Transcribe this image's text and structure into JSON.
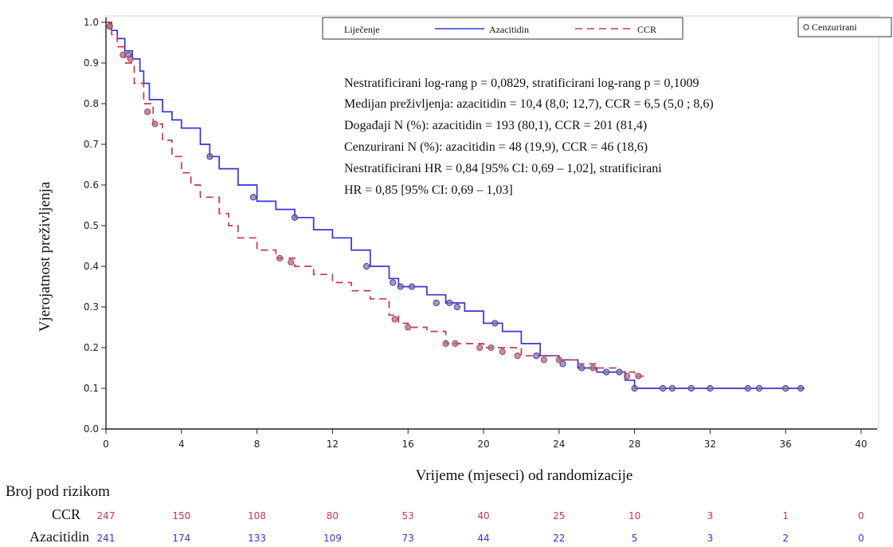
{
  "colors": {
    "azacitidine": "#3535d6",
    "ccr": "#c43a4a",
    "censor_fill": "#8a7e86",
    "axis": "#222222"
  },
  "chart_data": {
    "type": "line",
    "xlabel": "Vrijeme (mjeseci) od randomizacije",
    "ylabel": "Vjerojatnost preživljenja",
    "xlim": [
      0,
      40
    ],
    "ylim": [
      0,
      1
    ],
    "x_ticks": [
      "0",
      "4",
      "8",
      "12",
      "16",
      "20",
      "24",
      "28",
      "32",
      "36",
      "40"
    ],
    "y_ticks": [
      "0.0",
      "0.1",
      "0.2",
      "0.3",
      "0.4",
      "0.5",
      "0.6",
      "0.7",
      "0.8",
      "0.9",
      "1.0"
    ],
    "legend": {
      "title": "Liječenje",
      "censor_label": "Cenzurirani",
      "placement": "top"
    },
    "series": [
      {
        "name": "Azacitidin",
        "style": "solid",
        "x": [
          0,
          0.3,
          0.6,
          1.0,
          1.4,
          1.8,
          2.0,
          2.3,
          3.0,
          3.5,
          4.0,
          5.0,
          5.5,
          6.0,
          7.0,
          8.0,
          9.0,
          10.0,
          11.0,
          12.0,
          13.0,
          14.0,
          15.0,
          15.5,
          16.0,
          17.0,
          18.0,
          19.0,
          20.0,
          21.0,
          22.0,
          23.0,
          24.0,
          25.0,
          26.0,
          27.0,
          27.5,
          28.0,
          29.0,
          30.0,
          32.0,
          34.0,
          36.0,
          37.0
        ],
        "y": [
          1.0,
          0.98,
          0.96,
          0.93,
          0.91,
          0.88,
          0.85,
          0.81,
          0.78,
          0.76,
          0.74,
          0.7,
          0.67,
          0.64,
          0.6,
          0.56,
          0.54,
          0.52,
          0.49,
          0.47,
          0.44,
          0.4,
          0.37,
          0.35,
          0.35,
          0.33,
          0.31,
          0.29,
          0.26,
          0.24,
          0.21,
          0.18,
          0.17,
          0.15,
          0.14,
          0.14,
          0.12,
          0.1,
          0.1,
          0.1,
          0.1,
          0.1,
          0.1,
          0.1
        ],
        "censored": [
          [
            0.2,
            0.99
          ],
          [
            1.2,
            0.92
          ],
          [
            5.5,
            0.67
          ],
          [
            7.8,
            0.57
          ],
          [
            10.0,
            0.52
          ],
          [
            13.8,
            0.4
          ],
          [
            15.2,
            0.36
          ],
          [
            15.6,
            0.35
          ],
          [
            16.2,
            0.35
          ],
          [
            17.5,
            0.31
          ],
          [
            18.2,
            0.31
          ],
          [
            18.6,
            0.3
          ],
          [
            20.6,
            0.26
          ],
          [
            22.8,
            0.18
          ],
          [
            24.2,
            0.16
          ],
          [
            25.2,
            0.15
          ],
          [
            26.5,
            0.14
          ],
          [
            27.2,
            0.14
          ],
          [
            28.0,
            0.1
          ],
          [
            29.5,
            0.1
          ],
          [
            30.0,
            0.1
          ],
          [
            31.0,
            0.1
          ],
          [
            32.0,
            0.1
          ],
          [
            34.0,
            0.1
          ],
          [
            34.6,
            0.1
          ],
          [
            36.0,
            0.1
          ],
          [
            36.8,
            0.1
          ]
        ]
      },
      {
        "name": "CCR",
        "style": "dashed",
        "x": [
          0,
          0.3,
          0.6,
          1.0,
          1.5,
          2.0,
          2.5,
          3.0,
          3.5,
          4.0,
          4.5,
          5.0,
          6.0,
          6.5,
          7.0,
          8.0,
          9.0,
          10.0,
          11.0,
          12.0,
          13.0,
          14.0,
          15.0,
          15.5,
          16.0,
          17.0,
          18.0,
          19.0,
          20.0,
          21.0,
          22.0,
          23.0,
          24.0,
          25.0,
          26.0,
          27.0,
          28.0,
          28.5
        ],
        "y": [
          1.0,
          0.97,
          0.94,
          0.9,
          0.85,
          0.8,
          0.75,
          0.71,
          0.67,
          0.63,
          0.6,
          0.57,
          0.53,
          0.5,
          0.47,
          0.44,
          0.42,
          0.4,
          0.38,
          0.36,
          0.34,
          0.32,
          0.28,
          0.26,
          0.25,
          0.24,
          0.21,
          0.21,
          0.2,
          0.2,
          0.18,
          0.18,
          0.17,
          0.16,
          0.15,
          0.14,
          0.13,
          0.12
        ],
        "censored": [
          [
            0.2,
            0.99
          ],
          [
            0.9,
            0.92
          ],
          [
            1.3,
            0.91
          ],
          [
            2.2,
            0.78
          ],
          [
            2.6,
            0.75
          ],
          [
            9.2,
            0.42
          ],
          [
            9.8,
            0.41
          ],
          [
            15.3,
            0.27
          ],
          [
            16.0,
            0.25
          ],
          [
            18.0,
            0.21
          ],
          [
            18.5,
            0.21
          ],
          [
            19.8,
            0.2
          ],
          [
            20.4,
            0.2
          ],
          [
            21.0,
            0.19
          ],
          [
            21.8,
            0.18
          ],
          [
            23.2,
            0.17
          ],
          [
            24.0,
            0.17
          ],
          [
            25.8,
            0.15
          ],
          [
            27.6,
            0.13
          ],
          [
            28.2,
            0.13
          ]
        ]
      }
    ],
    "annotation_lines": [
      "Nestratificirani log-rang p = 0,0829, stratificirani log-rang p = 0,1009",
      "Medijan preživljenja: azacitidin = 10,4 (8,0; 12,7), CCR = 6,5 (5,0 ; 8,6)",
      "Događaji N (%): azacitidin = 193 (80,1), CCR = 201 (81,4)",
      "Cenzurirani N (%): azacitidin = 48 (19,9), CCR = 46 (18,6)",
      "Nestratificirani HR = 0,84 [95% CI: 0,69 – 1,02], stratificirani",
      "HR = 0,85 [95% CI: 0,69 – 1,03]"
    ],
    "risk_table": {
      "title": "Broj pod rizikom",
      "rows": [
        {
          "label": "CCR",
          "values": [
            "247",
            "150",
            "108",
            "80",
            "53",
            "40",
            "25",
            "10",
            "3",
            "1",
            "0"
          ]
        },
        {
          "label": "Azacitidin",
          "values": [
            "241",
            "174",
            "133",
            "109",
            "73",
            "44",
            "22",
            "5",
            "3",
            "2",
            "0"
          ]
        }
      ]
    }
  }
}
